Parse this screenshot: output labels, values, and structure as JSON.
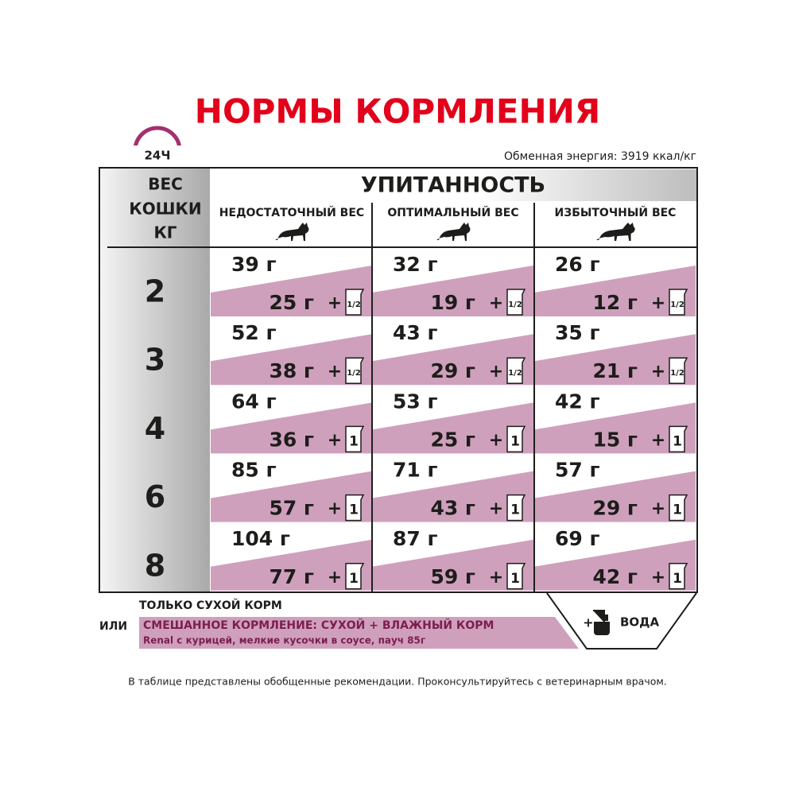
{
  "header": {
    "title": "НОРМЫ КОРМЛЕНИЯ",
    "clock": "24Ч",
    "energy": "Обменная энергия: 3919 ккал/кг"
  },
  "table": {
    "weight_header": [
      "ВЕС",
      "КОШКИ",
      "КГ"
    ],
    "condition_header": "УПИТАННОСТЬ",
    "columns": [
      "НЕДОСТАТОЧНЫЙ ВЕС",
      "ОПТИМАЛЬНЫЙ ВЕС",
      "ИЗБЫТОЧНЫЙ ВЕС"
    ],
    "plus": "+",
    "rows": [
      {
        "weight": "2",
        "cells": [
          {
            "dry": "39 г",
            "mixed": "25 г",
            "pouch": "1/2"
          },
          {
            "dry": "32 г",
            "mixed": "19 г",
            "pouch": "1/2"
          },
          {
            "dry": "26 г",
            "mixed": "12 г",
            "pouch": "1/2"
          }
        ]
      },
      {
        "weight": "3",
        "cells": [
          {
            "dry": "52 г",
            "mixed": "38 г",
            "pouch": "1/2"
          },
          {
            "dry": "43 г",
            "mixed": "29 г",
            "pouch": "1/2"
          },
          {
            "dry": "35 г",
            "mixed": "21 г",
            "pouch": "1/2"
          }
        ]
      },
      {
        "weight": "4",
        "cells": [
          {
            "dry": "64 г",
            "mixed": "36 г",
            "pouch": "1"
          },
          {
            "dry": "53 г",
            "mixed": "25 г",
            "pouch": "1"
          },
          {
            "dry": "42 г",
            "mixed": "15 г",
            "pouch": "1"
          }
        ]
      },
      {
        "weight": "6",
        "cells": [
          {
            "dry": "85 г",
            "mixed": "57 г",
            "pouch": "1"
          },
          {
            "dry": "71 г",
            "mixed": "43 г",
            "pouch": "1"
          },
          {
            "dry": "57 г",
            "mixed": "29 г",
            "pouch": "1"
          }
        ]
      },
      {
        "weight": "8",
        "cells": [
          {
            "dry": "104 г",
            "mixed": "77 г",
            "pouch": "1"
          },
          {
            "dry": "87 г",
            "mixed": "59 г",
            "pouch": "1"
          },
          {
            "dry": "69 г",
            "mixed": "42 г",
            "pouch": "1"
          }
        ]
      }
    ]
  },
  "legend": {
    "dry_only": "ТОЛЬКО СУХОЙ КОРМ",
    "or": "ИЛИ",
    "mixed": "СМЕШАННОЕ КОРМЛЕНИЕ: СУХОЙ + ВЛАЖНЫЙ КОРМ",
    "wet_product": "Renal с курицей, мелкие кусочки в соусе, пауч 85г",
    "plus": "+",
    "water": "ВОДА"
  },
  "footnote": "В таблице представлены обобщенные рекомендации. Проконсультируйтесь с ветеринарным врачом."
}
